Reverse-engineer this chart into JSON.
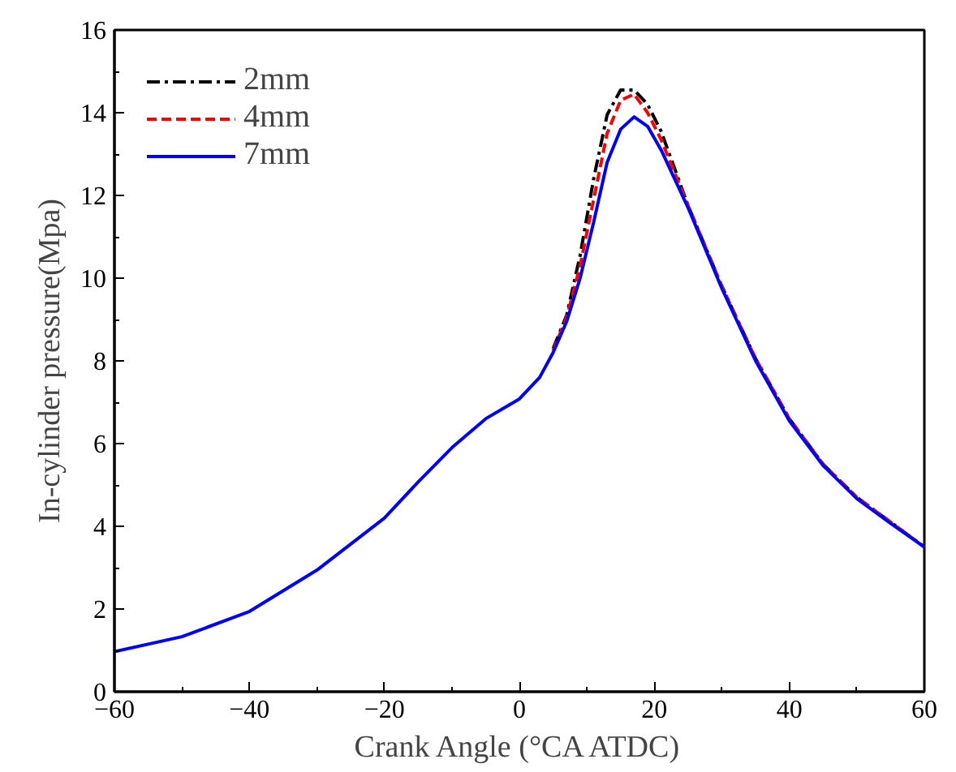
{
  "chart_data": {
    "type": "line",
    "xlabel": "Crank Angle (°CA ATDC)",
    "ylabel": "In-cylinder pressure(Mpa)",
    "x": [
      -60,
      -50,
      -40,
      -30,
      -20,
      -15,
      -10,
      -5,
      0,
      3,
      5,
      7,
      9,
      11,
      13,
      15,
      17,
      19,
      21,
      25,
      30,
      35,
      40,
      45,
      50,
      55,
      60
    ],
    "series": [
      {
        "name": "2mm",
        "color": "#000000",
        "line_style": "dashdot",
        "values": [
          null,
          null,
          null,
          null,
          null,
          null,
          null,
          null,
          null,
          null,
          8.3,
          9.1,
          10.55,
          12.4,
          13.95,
          14.55,
          14.55,
          14.2,
          13.55,
          11.75,
          9.8,
          8.05,
          6.6,
          5.5,
          4.7,
          4.1,
          3.5
        ]
      },
      {
        "name": "4mm",
        "color": "#ff0000",
        "line_style": "dashed",
        "values": [
          null,
          null,
          null,
          null,
          null,
          null,
          null,
          null,
          null,
          null,
          8.25,
          9.05,
          10.3,
          11.9,
          13.5,
          14.3,
          14.45,
          14.0,
          13.35,
          11.75,
          9.8,
          8.05,
          6.6,
          5.5,
          4.7,
          4.1,
          3.5
        ]
      },
      {
        "name": "7mm",
        "color": "#0000ff",
        "line_style": "solid",
        "values": [
          0.97,
          1.33,
          1.94,
          2.94,
          4.2,
          5.07,
          5.9,
          6.6,
          7.08,
          7.6,
          8.2,
          8.95,
          10.0,
          11.35,
          12.8,
          13.6,
          13.9,
          13.67,
          13.1,
          11.7,
          9.75,
          8.0,
          6.55,
          5.47,
          4.67,
          4.07,
          3.5
        ]
      }
    ],
    "xlim": [
      -60,
      60
    ],
    "xticks": [
      -60,
      -40,
      -20,
      0,
      20,
      40,
      60
    ],
    "ylim": [
      0,
      16
    ],
    "yticks": [
      0,
      2,
      4,
      6,
      8,
      10,
      12,
      14,
      16
    ],
    "legend": "top left",
    "grid": false
  }
}
